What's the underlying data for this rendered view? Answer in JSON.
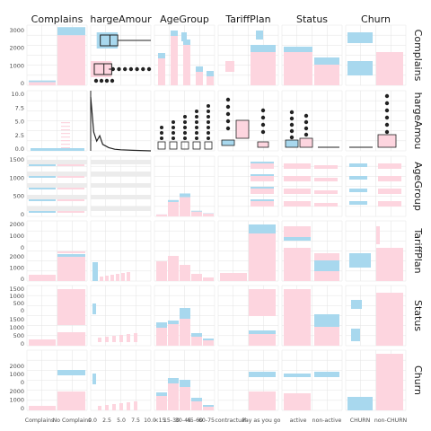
{
  "chart_data": {
    "type": "pairs",
    "variables": [
      "Complains",
      "ChargeAmount",
      "AgeGroup",
      "TariffPlan",
      "Status",
      "Churn"
    ],
    "top_strip_labels": [
      "Complains",
      "hargeAmour",
      "AgeGroup",
      "TariffPlan",
      "Status",
      "Churn"
    ],
    "right_strip_labels": [
      "Complains",
      "hargeAmou",
      "AgeGroup",
      "TariffPlan",
      "Status",
      "Churn"
    ],
    "series": [
      {
        "name": "CHURN",
        "color": "#a8d8ee"
      },
      {
        "name": "non-CHURN",
        "color": "#fdd5df"
      }
    ],
    "bottom_tick_labels": {
      "Complains": [
        "Complains",
        "No Complains"
      ],
      "ChargeAmount": [
        "0.0",
        "2.5",
        "5.0",
        "7.5",
        "10.0"
      ],
      "AgeGroup": [
        "<15",
        "15-30",
        "30-45",
        "45-60",
        "60-75"
      ],
      "TariffPlan": [
        "contractual",
        "Pay as you go"
      ],
      "Status": [
        "active",
        "non-active"
      ],
      "Churn": [
        "CHURN",
        "non-CHURN"
      ]
    },
    "left_tick_labels": {
      "row1": [
        "3000",
        "2000",
        "1000",
        "0"
      ],
      "row2": [
        "10.0",
        "7.5",
        "5.0",
        "2.5",
        "0.0"
      ],
      "row3": [
        "1500",
        "1000",
        "500",
        "0"
      ],
      "row4a": [
        "2000",
        "1000",
        "0"
      ],
      "row4b": [
        "2000",
        "1000",
        "0"
      ],
      "row5a": [
        "1500",
        "1000",
        "500",
        "0"
      ],
      "row5b": [
        "1500",
        "1000",
        "500",
        "0"
      ],
      "row6a": [
        "2000",
        "1000",
        "0"
      ],
      "row6b": [
        "2000",
        "1000",
        "0"
      ]
    },
    "complains_counts": {
      "Complains": [
        160,
        80
      ],
      "No Complains": [
        2500,
        400
      ]
    },
    "tariff_counts": {
      "contractual": [
        180,
        10
      ],
      "Pay as you go": [
        2480,
        480
      ]
    },
    "status_counts": {
      "active": [
        2100,
        250
      ],
      "non-active": [
        500,
        300
      ]
    },
    "churn_counts": {
      "CHURN": [
        0,
        495
      ],
      "non-CHURN": [
        2655,
        0
      ]
    },
    "agegroup_counts": {
      "<15": [
        120,
        5
      ],
      "15-30": [
        900,
        120
      ],
      "30-45": [
        1200,
        230
      ],
      "45-60": [
        300,
        50
      ],
      "60-75": [
        180,
        20
      ]
    },
    "chargeamount_box_by_complains": {
      "Complains": {
        "q1": 0,
        "median": 1,
        "q3": 2,
        "whisker": 3,
        "outliers": [
          4,
          5,
          6,
          7,
          8,
          9,
          10
        ]
      },
      "No Complains": {
        "q1": 1,
        "median": 2,
        "q3": 3,
        "whisker": 10,
        "outliers": []
      }
    },
    "chargeamount_density": [
      {
        "x": 0,
        "y": 1.0
      },
      {
        "x": 0.5,
        "y": 0.35
      },
      {
        "x": 1,
        "y": 0.18
      },
      {
        "x": 1.5,
        "y": 0.28
      },
      {
        "x": 2,
        "y": 0.12
      },
      {
        "x": 3,
        "y": 0.06
      },
      {
        "x": 4,
        "y": 0.03
      },
      {
        "x": 5,
        "y": 0.02
      },
      {
        "x": 7,
        "y": 0.01
      },
      {
        "x": 10,
        "y": 0.0
      }
    ]
  }
}
